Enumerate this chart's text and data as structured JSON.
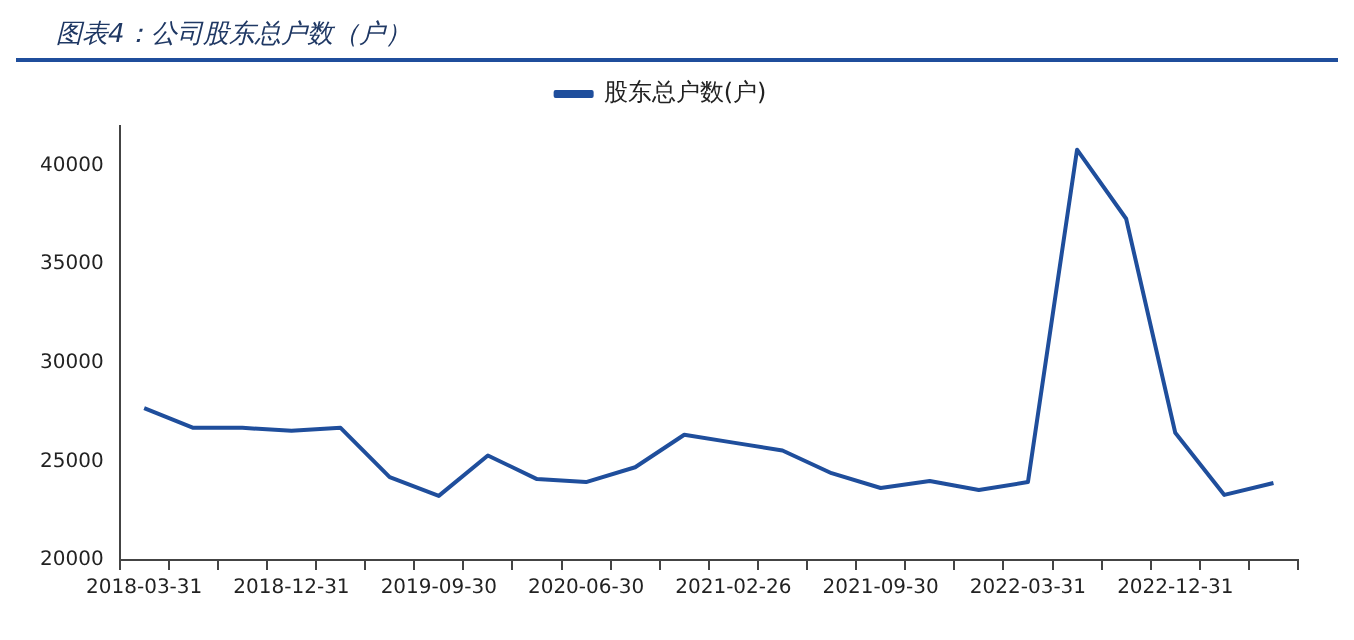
{
  "chart_data": {
    "type": "line",
    "title": "图表4：公司股东总户数（户）",
    "categories": [
      "2018-03-31",
      null,
      null,
      "2018-12-31",
      null,
      null,
      "2019-09-30",
      null,
      null,
      "2020-06-30",
      null,
      null,
      "2021-02-26",
      null,
      null,
      "2021-09-30",
      null,
      null,
      "2022-03-31",
      null,
      null,
      "2022-12-31",
      null,
      null
    ],
    "series": [
      {
        "name": "股东总户数(户)",
        "color": "#1f4e9c",
        "values": [
          27700,
          26700,
          26700,
          26550,
          26700,
          24200,
          23250,
          25300,
          24100,
          23950,
          24700,
          26350,
          25950,
          25550,
          24400,
          23650,
          24000,
          23550,
          23950,
          40800,
          37300,
          26450,
          23300,
          23900
        ]
      }
    ],
    "ylim": [
      20000,
      42000
    ],
    "yticks": [
      20000,
      25000,
      30000,
      35000,
      40000
    ],
    "grid": false,
    "legend": "top",
    "marker": "none",
    "line_style": "solid"
  }
}
